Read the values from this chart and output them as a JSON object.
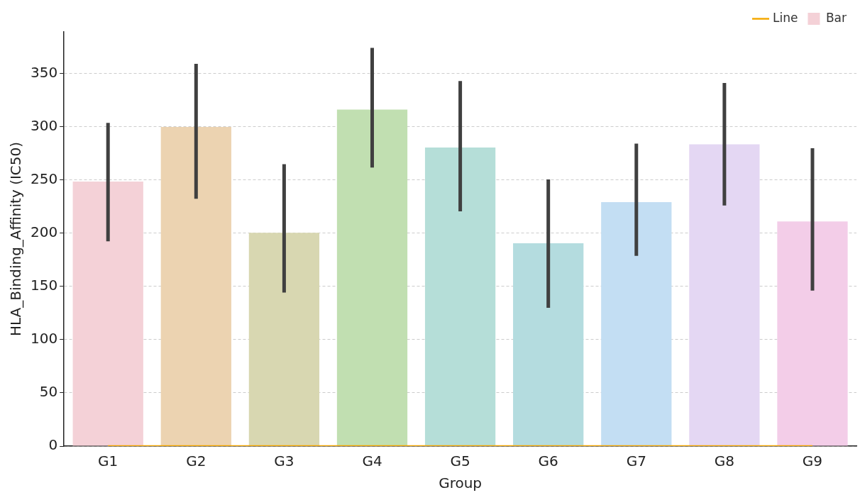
{
  "chart_data": {
    "type": "bar",
    "xlabel": "Group",
    "ylabel": "HLA_Binding_Affinity (IC50)",
    "categories": [
      "G1",
      "G2",
      "G3",
      "G4",
      "G5",
      "G6",
      "G7",
      "G8",
      "G9"
    ],
    "series": [
      {
        "name": "Line",
        "type": "line",
        "color": "#f5a800",
        "values": [
          0,
          0,
          0,
          0,
          0,
          0,
          0,
          0,
          0
        ]
      },
      {
        "name": "Bar",
        "colors": [
          "#f4d1d7",
          "#ecd3b1",
          "#d8d7b1",
          "#c1dfb1",
          "#b5ded8",
          "#b4dcdf",
          "#c3def3",
          "#e4d7f3",
          "#f3cde8"
        ],
        "values": [
          248.5,
          299.7,
          200.4,
          316,
          280.4,
          190.5,
          229.2,
          283.5,
          211
        ],
        "errors": [
          [
            192.3,
            303.5
          ],
          [
            232.3,
            359
          ],
          [
            144.2,
            264.8
          ],
          [
            261.6,
            374
          ],
          [
            220.4,
            342.8
          ],
          [
            129.9,
            250.4
          ],
          [
            178.6,
            284.1
          ],
          [
            226,
            341
          ],
          [
            146.1,
            279.7
          ]
        ]
      }
    ],
    "ylim": [
      0,
      389
    ],
    "yticks": [
      0,
      50,
      100,
      150,
      200,
      250,
      300,
      350
    ],
    "grid": "y",
    "legend": "top right"
  }
}
